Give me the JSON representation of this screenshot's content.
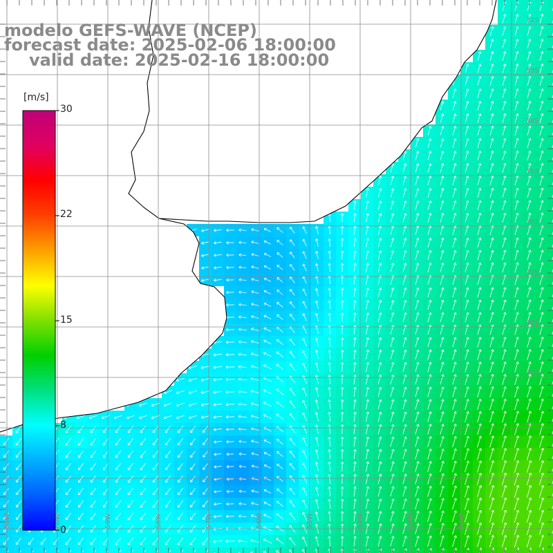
{
  "header": {
    "model_line": "modelo GEFS-WAVE (NCEP)",
    "forecast_line": "forecast date: 2025-02-06 18:00:00",
    "valid_line": "valid date: 2025-02-16 18:00:00"
  },
  "colorbar": {
    "unit": "[m/s]",
    "ticks": [
      "30",
      "22",
      "15",
      "8",
      "0"
    ],
    "tick_values": [
      30,
      22,
      15,
      8,
      0
    ],
    "min": 0,
    "max": 30,
    "colors": [
      "#0000ff",
      "#0060ff",
      "#00b0ff",
      "#00ffff",
      "#00e080",
      "#00d000",
      "#80e000",
      "#ffff00",
      "#ffa000",
      "#ff4000",
      "#ff0000",
      "#e00060",
      "#c0007a"
    ]
  },
  "map": {
    "land_color": "#ffffff",
    "coastline_color": "#000000",
    "grid_color": "#8a8a8a",
    "lat_labels": [
      "32S",
      "33S",
      "34S",
      "35S",
      "36S",
      "37S",
      "38S",
      "39S",
      "40S"
    ],
    "lon_labels": [
      "61W",
      "60W",
      "59W",
      "58W",
      "57W",
      "56W",
      "55W",
      "54W",
      "53W",
      "52W"
    ],
    "field": "wind speed (m/s) with direction arrows"
  }
}
